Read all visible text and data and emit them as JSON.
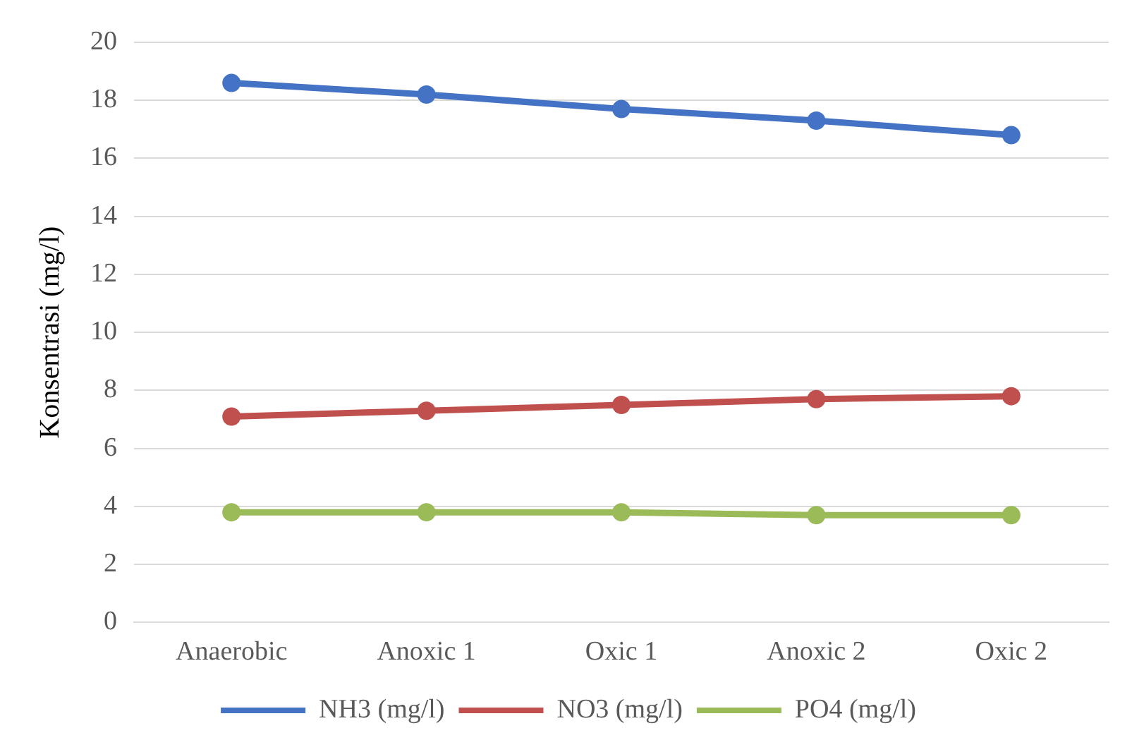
{
  "chart_data": {
    "type": "line",
    "ylabel": "Konsentrasi (mg/l)",
    "categories": [
      "Anaerobic",
      "Anoxic 1",
      "Oxic 1",
      "Anoxic 2",
      "Oxic 2"
    ],
    "series": [
      {
        "name": "NH3 (mg/l)",
        "color": "#4472c4",
        "values": [
          18.6,
          18.2,
          17.7,
          17.3,
          16.8
        ]
      },
      {
        "name": "NO3 (mg/l)",
        "color": "#c0504d",
        "values": [
          7.1,
          7.3,
          7.5,
          7.7,
          7.8
        ]
      },
      {
        "name": "PO4 (mg/l)",
        "color": "#9bbb59",
        "values": [
          3.8,
          3.8,
          3.8,
          3.7,
          3.7
        ]
      }
    ],
    "ylim": [
      0,
      20
    ],
    "yticks": [
      0,
      2,
      4,
      6,
      8,
      10,
      12,
      14,
      16,
      18,
      20
    ],
    "grid": "y",
    "legend": "bottom",
    "marker": "circle",
    "line_style": "solid"
  }
}
